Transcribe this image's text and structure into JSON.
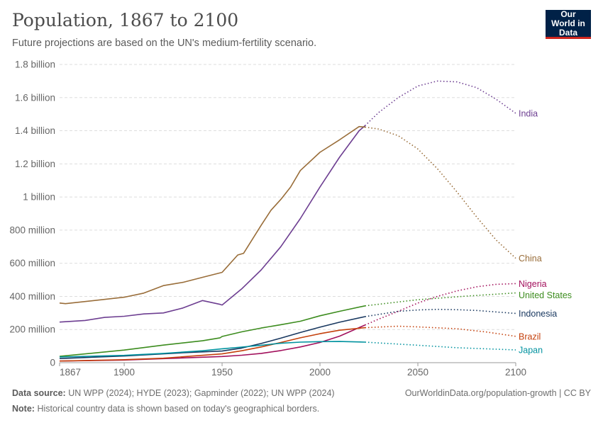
{
  "header": {
    "title": "Population, 1867 to 2100",
    "subtitle": "Future projections are based on the UN's medium-fertility scenario.",
    "logo": "Our World in Data"
  },
  "footer": {
    "source_label": "Data source:",
    "source": "UN WPP (2024); HYDE (2023); Gapminder (2022); UN WPP (2024)",
    "url": "OurWorldinData.org/population-growth | CC BY",
    "note_label": "Note:",
    "note": "Historical country data is shown based on today's geographical borders."
  },
  "chart_data": {
    "type": "line",
    "title": "Population, 1867 to 2100",
    "xlim": [
      1867,
      2100
    ],
    "ylim": [
      0,
      1800000000
    ],
    "x_ticks": [
      {
        "v": 1867,
        "label": "1867"
      },
      {
        "v": 1900,
        "label": "1900"
      },
      {
        "v": 1950,
        "label": "1950"
      },
      {
        "v": 2000,
        "label": "2000"
      },
      {
        "v": 2050,
        "label": "2050"
      },
      {
        "v": 2100,
        "label": "2100"
      }
    ],
    "y_ticks": [
      {
        "v": 0,
        "label": "0"
      },
      {
        "v": 200000000,
        "label": "200 million"
      },
      {
        "v": 400000000,
        "label": "400 million"
      },
      {
        "v": 600000000,
        "label": "600 million"
      },
      {
        "v": 800000000,
        "label": "800 million"
      },
      {
        "v": 1000000000,
        "label": "1 billion"
      },
      {
        "v": 1200000000,
        "label": "1.2 billion"
      },
      {
        "v": 1400000000,
        "label": "1.4 billion"
      },
      {
        "v": 1600000000,
        "label": "1.6 billion"
      },
      {
        "v": 1800000000,
        "label": "1.8 billion"
      }
    ],
    "grid": true,
    "projection_start": 2023,
    "legend": "inline-right",
    "series": [
      {
        "name": "India",
        "color": "#6d3e91",
        "historical": [
          [
            1867,
            245
          ],
          [
            1880,
            255
          ],
          [
            1890,
            273
          ],
          [
            1900,
            280
          ],
          [
            1910,
            294
          ],
          [
            1920,
            300
          ],
          [
            1930,
            330
          ],
          [
            1940,
            375
          ],
          [
            1949,
            352
          ],
          [
            1950,
            348
          ],
          [
            1960,
            445
          ],
          [
            1970,
            560
          ],
          [
            1980,
            700
          ],
          [
            1990,
            870
          ],
          [
            2000,
            1060
          ],
          [
            2010,
            1240
          ],
          [
            2020,
            1400
          ],
          [
            2023,
            1430
          ]
        ],
        "projection": [
          [
            2023,
            1430
          ],
          [
            2030,
            1510
          ],
          [
            2040,
            1600
          ],
          [
            2050,
            1670
          ],
          [
            2060,
            1700
          ],
          [
            2070,
            1695
          ],
          [
            2080,
            1660
          ],
          [
            2090,
            1590
          ],
          [
            2100,
            1505
          ]
        ]
      },
      {
        "name": "China",
        "color": "#996d39",
        "historical": [
          [
            1867,
            360
          ],
          [
            1870,
            356
          ],
          [
            1900,
            395
          ],
          [
            1910,
            420
          ],
          [
            1920,
            465
          ],
          [
            1930,
            485
          ],
          [
            1940,
            515
          ],
          [
            1950,
            545
          ],
          [
            1958,
            650
          ],
          [
            1961,
            660
          ],
          [
            1970,
            830
          ],
          [
            1975,
            920
          ],
          [
            1980,
            985
          ],
          [
            1985,
            1060
          ],
          [
            1990,
            1160
          ],
          [
            2000,
            1270
          ],
          [
            2010,
            1345
          ],
          [
            2020,
            1425
          ],
          [
            2023,
            1422
          ]
        ],
        "projection": [
          [
            2023,
            1422
          ],
          [
            2030,
            1410
          ],
          [
            2040,
            1370
          ],
          [
            2050,
            1290
          ],
          [
            2060,
            1170
          ],
          [
            2070,
            1030
          ],
          [
            2080,
            880
          ],
          [
            2090,
            740
          ],
          [
            2100,
            630
          ]
        ]
      },
      {
        "name": "Nigeria",
        "color": "#a2105c",
        "historical": [
          [
            1867,
            10
          ],
          [
            1900,
            16
          ],
          [
            1950,
            37
          ],
          [
            1960,
            45
          ],
          [
            1970,
            56
          ],
          [
            1980,
            73
          ],
          [
            1990,
            95
          ],
          [
            2000,
            122
          ],
          [
            2010,
            160
          ],
          [
            2023,
            227
          ]
        ],
        "projection": [
          [
            2023,
            227
          ],
          [
            2030,
            263
          ],
          [
            2040,
            310
          ],
          [
            2050,
            360
          ],
          [
            2060,
            400
          ],
          [
            2070,
            433
          ],
          [
            2080,
            458
          ],
          [
            2090,
            473
          ],
          [
            2100,
            477
          ]
        ]
      },
      {
        "name": "United States",
        "color": "#3c8c1e",
        "historical": [
          [
            1867,
            38
          ],
          [
            1900,
            76
          ],
          [
            1920,
            106
          ],
          [
            1940,
            132
          ],
          [
            1949,
            150
          ],
          [
            1950,
            158
          ],
          [
            1960,
            186
          ],
          [
            1970,
            209
          ],
          [
            1980,
            229
          ],
          [
            1990,
            250
          ],
          [
            2000,
            283
          ],
          [
            2010,
            310
          ],
          [
            2023,
            343
          ]
        ],
        "projection": [
          [
            2023,
            343
          ],
          [
            2050,
            380
          ],
          [
            2075,
            402
          ],
          [
            2100,
            421
          ]
        ]
      },
      {
        "name": "Indonesia",
        "color": "#18375f",
        "historical": [
          [
            1867,
            25
          ],
          [
            1900,
            40
          ],
          [
            1930,
            60
          ],
          [
            1950,
            70
          ],
          [
            1960,
            88
          ],
          [
            1970,
            116
          ],
          [
            1980,
            148
          ],
          [
            1990,
            182
          ],
          [
            2000,
            214
          ],
          [
            2010,
            244
          ],
          [
            2023,
            278
          ]
        ],
        "projection": [
          [
            2023,
            278
          ],
          [
            2040,
            310
          ],
          [
            2050,
            318
          ],
          [
            2060,
            322
          ],
          [
            2070,
            320
          ],
          [
            2080,
            315
          ],
          [
            2100,
            297
          ]
        ]
      },
      {
        "name": "Brazil",
        "color": "#c4400c",
        "historical": [
          [
            1867,
            10
          ],
          [
            1900,
            18
          ],
          [
            1920,
            27
          ],
          [
            1950,
            53
          ],
          [
            1960,
            72
          ],
          [
            1970,
            95
          ],
          [
            1980,
            122
          ],
          [
            1990,
            150
          ],
          [
            2000,
            175
          ],
          [
            2010,
            196
          ],
          [
            2023,
            211
          ]
        ],
        "projection": [
          [
            2023,
            211
          ],
          [
            2040,
            220
          ],
          [
            2050,
            216
          ],
          [
            2070,
            205
          ],
          [
            2085,
            185
          ],
          [
            2100,
            159
          ]
        ]
      },
      {
        "name": "Japan",
        "color": "#00929f",
        "historical": [
          [
            1867,
            34
          ],
          [
            1900,
            44
          ],
          [
            1920,
            56
          ],
          [
            1940,
            72
          ],
          [
            1950,
            84
          ],
          [
            1960,
            94
          ],
          [
            1970,
            105
          ],
          [
            1980,
            117
          ],
          [
            1990,
            124
          ],
          [
            2000,
            127
          ],
          [
            2010,
            128
          ],
          [
            2023,
            124
          ]
        ],
        "projection": [
          [
            2023,
            124
          ],
          [
            2050,
            105
          ],
          [
            2070,
            90
          ],
          [
            2100,
            77
          ]
        ]
      }
    ],
    "value_unit": "millions"
  }
}
